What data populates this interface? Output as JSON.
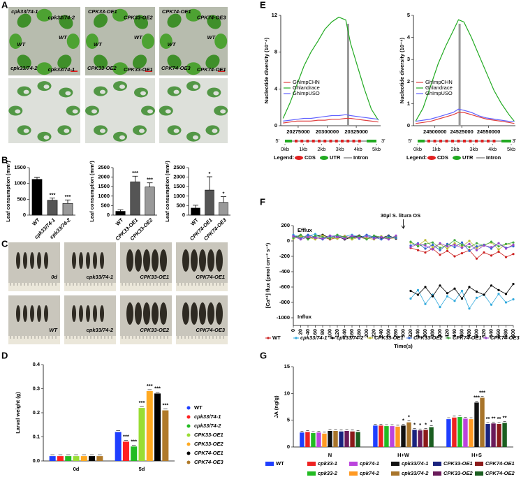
{
  "panel_labels": [
    "A",
    "B",
    "C",
    "D",
    "E",
    "F",
    "G"
  ],
  "photos": {
    "A": [
      [
        "cpk33/74-1",
        "cpk33/74-2",
        "WT",
        "WT",
        "cpk33/74-2",
        "cpk33/74-1"
      ],
      [
        "CPK33-OE1",
        "CPK33-OE2",
        "WT",
        "WT",
        "CPK33-OE2",
        "CPK33-OE1"
      ],
      [
        "CPK74-OE1",
        "CPK74-OE3",
        "WT",
        "WT",
        "CPK74-OE3",
        "CPK74-OE1"
      ]
    ],
    "C": [
      "0d",
      "cpk33/74-1",
      "CPK33-OE1",
      "CPK74-OE1",
      "WT",
      "cpk33/74-2",
      "CPK33-OE2",
      "CPK74-OE3"
    ]
  },
  "gene_structure": {
    "ticks": [
      "0kb",
      "1kb",
      "2kb",
      "3kb",
      "4kb",
      "5kb"
    ],
    "five": "5'",
    "three": "3'",
    "legend": "Legend:",
    "cds": "CDS",
    "utr": "UTR",
    "intron": "Intron"
  },
  "chart_data": [
    {
      "type": "bar",
      "y_label": "Leaf consumption (mm²)",
      "categories": [
        "WT",
        "cpk33/74-1",
        "cpk33/74-2"
      ],
      "values": [
        1130,
        470,
        370
      ],
      "errors": [
        60,
        70,
        110
      ],
      "stars": [
        null,
        "***",
        "***"
      ],
      "colors": [
        "#000000",
        "#555555",
        "#999999"
      ],
      "ylim": [
        0,
        1500
      ],
      "yticks": [
        0,
        500,
        1000,
        1500
      ]
    },
    {
      "type": "bar",
      "y_label": "Leaf consumption (mm²)",
      "categories": [
        "WT",
        "CPK33-OE1",
        "CPK33-OE2"
      ],
      "values": [
        200,
        1750,
        1480
      ],
      "errors": [
        80,
        300,
        220
      ],
      "stars": [
        null,
        "***",
        "***"
      ],
      "colors": [
        "#000000",
        "#555555",
        "#999999"
      ],
      "ylim": [
        0,
        2500
      ],
      "yticks": [
        0,
        500,
        1000,
        1500,
        2000,
        2500
      ]
    },
    {
      "type": "bar",
      "y_label": "Leaf consumption (mm²)",
      "categories": [
        "WT",
        "CPK74-OE1",
        "CPK74-OE3"
      ],
      "values": [
        370,
        1320,
        670
      ],
      "errors": [
        150,
        700,
        300
      ],
      "stars": [
        null,
        "*",
        "*"
      ],
      "colors": [
        "#000000",
        "#555555",
        "#999999"
      ],
      "ylim": [
        0,
        2500
      ],
      "yticks": [
        0,
        500,
        1000,
        1500,
        2000,
        2500
      ]
    },
    {
      "type": "grouped_bar",
      "y_label": "Larval weight (g)",
      "categories": [
        "0d",
        "5d"
      ],
      "ylim": [
        0,
        0.4
      ],
      "yticks": [
        {
          "value": 0,
          "label": "0.0"
        },
        0.1,
        0.2,
        0.3,
        0.4
      ],
      "series": [
        {
          "name": "WT",
          "color": "#1f3fff",
          "values": [
            0.02,
            0.12
          ],
          "stars": [
            null,
            null
          ]
        },
        {
          "name": "cpk33/74-1",
          "color": "#ff2020",
          "values": [
            0.02,
            0.08
          ],
          "stars": [
            null,
            "***"
          ]
        },
        {
          "name": "cpk33/74-2",
          "color": "#22bb22",
          "values": [
            0.02,
            0.06
          ],
          "stars": [
            null,
            "***"
          ]
        },
        {
          "name": "CPK33-OE1",
          "color": "#99dd33",
          "values": [
            0.02,
            0.22
          ],
          "stars": [
            null,
            "***"
          ]
        },
        {
          "name": "CPK33-OE2",
          "color": "#ffaa22",
          "values": [
            0.02,
            0.29
          ],
          "stars": [
            null,
            "***"
          ]
        },
        {
          "name": "CPK74-OE1",
          "color": "#000000",
          "values": [
            0.02,
            0.28
          ],
          "stars": [
            null,
            "***"
          ]
        },
        {
          "name": "CPK74-OE3",
          "color": "#b07a2a",
          "values": [
            0.02,
            0.21
          ],
          "stars": [
            null,
            "***"
          ]
        }
      ]
    },
    {
      "type": "line",
      "y_label": "Nucleotide diversity (10⁻⁴)",
      "xlim": [
        20260000,
        20346000
      ],
      "xticks": [
        20275000,
        20300000,
        20325000
      ],
      "ylim": [
        0,
        12
      ],
      "yticks": [
        0,
        4,
        8,
        12
      ],
      "highlight_x": 20318000,
      "x": [
        20262000,
        20268000,
        20274000,
        20280000,
        20286000,
        20292000,
        20298000,
        20304000,
        20310000,
        20316000,
        20320000,
        20326000,
        20332000,
        20338000,
        20344000
      ],
      "series": [
        {
          "name": "GhImpCHN",
          "color": "#e04040",
          "values": [
            0.3,
            0.4,
            0.5,
            0.5,
            0.5,
            0.6,
            0.6,
            0.7,
            0.7,
            0.8,
            0.8,
            0.7,
            0.6,
            0.5,
            0.4
          ]
        },
        {
          "name": "Ghlandrace",
          "color": "#22aa22",
          "values": [
            0.8,
            2.5,
            4.5,
            6.5,
            8.0,
            9.2,
            10.5,
            11.3,
            11.8,
            11.5,
            9.0,
            6.5,
            4.0,
            1.8,
            0.6
          ]
        },
        {
          "name": "GhImpUSO",
          "color": "#6060ff",
          "values": [
            0.5,
            0.6,
            0.7,
            0.8,
            0.8,
            0.9,
            1.0,
            1.1,
            1.1,
            1.2,
            1.1,
            1.0,
            0.9,
            0.8,
            0.7
          ]
        }
      ]
    },
    {
      "type": "line",
      "y_label": "Nucleotide diversity (10⁻⁴)",
      "xlim": [
        24480000,
        24575000
      ],
      "xticks": [
        24500000,
        24525000,
        24550000
      ],
      "ylim": [
        0,
        5
      ],
      "yticks": [
        0,
        1,
        2,
        3,
        4,
        5
      ],
      "highlight_x": 24523000,
      "x": [
        24482000,
        24489000,
        24496000,
        24503000,
        24510000,
        24517000,
        24522000,
        24527000,
        24534000,
        24541000,
        24548000,
        24555000,
        24562000,
        24569000,
        24574000
      ],
      "series": [
        {
          "name": "GhImpCHN",
          "color": "#e04040",
          "values": [
            0.1,
            0.15,
            0.2,
            0.3,
            0.4,
            0.5,
            0.6,
            0.6,
            0.5,
            0.4,
            0.3,
            0.25,
            0.2,
            0.15,
            0.1
          ]
        },
        {
          "name": "Ghlandrace",
          "color": "#22aa22",
          "values": [
            0.2,
            0.8,
            1.8,
            2.8,
            3.6,
            4.3,
            4.8,
            4.7,
            4.0,
            3.2,
            2.4,
            1.6,
            1.0,
            0.5,
            0.2
          ]
        },
        {
          "name": "GhImpUSO",
          "color": "#6060ff",
          "values": [
            0.2,
            0.25,
            0.3,
            0.4,
            0.5,
            0.6,
            0.75,
            0.7,
            0.6,
            0.45,
            0.35,
            0.3,
            0.25,
            0.2,
            0.2
          ]
        }
      ]
    },
    {
      "type": "line",
      "markers": true,
      "y_label": "[Ca²⁺] flux (pmol cm⁻² s⁻¹)",
      "x_label": "Time(s)",
      "efflux": "Efflux",
      "influx": "Influx",
      "treatment": "30µl S. litura OS",
      "treatment_x": 300,
      "xlim": [
        0,
        600
      ],
      "xticks": [
        0,
        20,
        40,
        60,
        80,
        100,
        120,
        140,
        160,
        180,
        200,
        220,
        240,
        260,
        280,
        300,
        320,
        340,
        360,
        380,
        400,
        420,
        440,
        460,
        480,
        500,
        520,
        540,
        560,
        580,
        600
      ],
      "ylim": [
        -1100,
        200
      ],
      "yticks": [
        200,
        0,
        -200,
        -400,
        -600,
        -800,
        -1000
      ],
      "x": [
        0,
        20,
        40,
        60,
        80,
        100,
        120,
        140,
        160,
        180,
        200,
        220,
        240,
        260,
        280,
        300,
        320,
        340,
        360,
        380,
        400,
        420,
        440,
        460,
        480,
        500,
        520,
        540,
        560,
        580,
        600
      ],
      "series": [
        {
          "name": "WT",
          "color": "#cc2222",
          "values": [
            60,
            40,
            70,
            30,
            55,
            20,
            45,
            65,
            35,
            50,
            25,
            60,
            40,
            30,
            50,
            null,
            -90,
            -120,
            -150,
            -100,
            -180,
            -130,
            -200,
            -160,
            -120,
            -230,
            -150,
            -190,
            -140,
            -210,
            -170
          ]
        },
        {
          "name": "cpk33/74-1",
          "color": "#33aadd",
          "values": [
            80,
            50,
            60,
            90,
            40,
            70,
            30,
            60,
            80,
            50,
            70,
            40,
            60,
            30,
            50,
            null,
            -750,
            -640,
            -820,
            -700,
            -860,
            -720,
            -780,
            -650,
            -880,
            -740,
            -700,
            -830,
            -690,
            -800,
            -760
          ]
        },
        {
          "name": "cpk33/74-2",
          "color": "#000000",
          "values": [
            50,
            70,
            30,
            60,
            80,
            40,
            60,
            20,
            50,
            70,
            30,
            60,
            40,
            70,
            30,
            null,
            -650,
            -700,
            -600,
            -720,
            -580,
            -680,
            -620,
            -750,
            -600,
            -660,
            -700,
            -580,
            -640,
            -690,
            -560
          ]
        },
        {
          "name": "CPK33-OE1",
          "color": "#bbbb33",
          "values": [
            30,
            60,
            50,
            20,
            70,
            40,
            30,
            60,
            20,
            50,
            40,
            20,
            60,
            30,
            40,
            null,
            -20,
            -60,
            10,
            -80,
            -40,
            -100,
            -30,
            -70,
            0,
            -90,
            -50,
            -20,
            -110,
            -40,
            -60
          ]
        },
        {
          "name": "CPK33-OE2",
          "color": "#3366cc",
          "values": [
            70,
            30,
            80,
            50,
            20,
            60,
            70,
            40,
            60,
            30,
            80,
            50,
            20,
            60,
            40,
            null,
            -60,
            -30,
            -100,
            -50,
            -120,
            -40,
            -80,
            -20,
            -130,
            -70,
            -50,
            -100,
            -30,
            -90,
            -70
          ]
        },
        {
          "name": "CPK74-OE1",
          "color": "#44aa44",
          "values": [
            40,
            80,
            20,
            70,
            50,
            30,
            80,
            50,
            40,
            60,
            20,
            70,
            50,
            40,
            60,
            null,
            -10,
            -70,
            -40,
            -20,
            -90,
            -60,
            10,
            -50,
            -80,
            -30,
            -60,
            -10,
            -70,
            -40,
            -20
          ]
        },
        {
          "name": "CPK74-OE3",
          "color": "#9944cc",
          "values": [
            60,
            20,
            50,
            40,
            30,
            70,
            50,
            30,
            70,
            40,
            60,
            30,
            50,
            20,
            70,
            null,
            -80,
            -40,
            -60,
            -110,
            -30,
            -70,
            -50,
            -90,
            -40,
            -120,
            -60,
            -80,
            -30,
            -100,
            -50
          ]
        }
      ]
    },
    {
      "type": "grouped_bar",
      "y_label": "JA (ng/g)",
      "categories": [
        "N",
        "H+W",
        "H+S"
      ],
      "ylim": [
        0,
        15
      ],
      "yticks": [
        0,
        5,
        10,
        15
      ],
      "series": [
        {
          "name": "WT",
          "color": "#1f3fff",
          "values": [
            2.7,
            4.0,
            5.2
          ],
          "stars": [
            null,
            null,
            null
          ]
        },
        {
          "name": "cpk33-1",
          "color": "#ee2222",
          "values": [
            2.8,
            4.0,
            5.5
          ],
          "stars": [
            null,
            null,
            null
          ]
        },
        {
          "name": "cpk33-2",
          "color": "#22bb22",
          "values": [
            2.6,
            3.9,
            5.6
          ],
          "stars": [
            null,
            null,
            null
          ]
        },
        {
          "name": "cpk74-1",
          "color": "#bb44dd",
          "values": [
            2.7,
            3.9,
            5.3
          ],
          "stars": [
            null,
            null,
            null
          ]
        },
        {
          "name": "cpk74-2",
          "color": "#ff9922",
          "values": [
            2.5,
            3.8,
            5.2
          ],
          "stars": [
            null,
            null,
            null
          ]
        },
        {
          "name": "cpk33/74-1",
          "color": "#111111",
          "values": [
            3.0,
            4.0,
            8.3
          ],
          "stars": [
            null,
            "*",
            "***"
          ]
        },
        {
          "name": "cpk33/74-2",
          "color": "#a8742a",
          "values": [
            3.0,
            4.6,
            9.2
          ],
          "stars": [
            null,
            "*",
            "***"
          ]
        },
        {
          "name": "CPK33-OE1",
          "color": "#1a237e",
          "values": [
            2.9,
            3.2,
            4.3
          ],
          "stars": [
            null,
            "*",
            "**"
          ]
        },
        {
          "name": "CPK33-OE2",
          "color": "#6a1b5a",
          "values": [
            3.0,
            3.1,
            4.4
          ],
          "stars": [
            null,
            "*",
            "**"
          ]
        },
        {
          "name": "CPK74-OE1",
          "color": "#8b1a1a",
          "values": [
            2.9,
            3.2,
            4.3
          ],
          "stars": [
            null,
            "*",
            "**"
          ]
        },
        {
          "name": "CPK74-OE2",
          "color": "#1b5e20",
          "values": [
            2.8,
            3.7,
            4.5
          ],
          "stars": [
            null,
            "*",
            "**"
          ]
        }
      ]
    }
  ]
}
